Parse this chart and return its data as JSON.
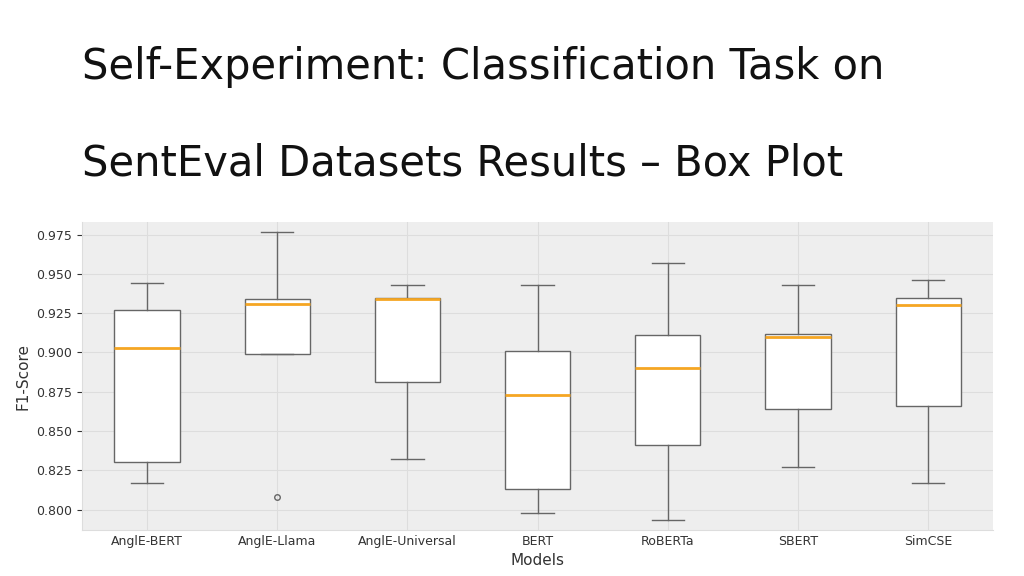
{
  "title_line1": "Self-Experiment: Classification Task on",
  "title_line2": "SentEval Datasets Results – Box Plot",
  "xlabel": "Models",
  "ylabel": "F1-Score",
  "models": [
    "AnglE-BERT",
    "AnglE-Llama",
    "AnglE-Universal",
    "BERT",
    "RoBERTa",
    "SBERT",
    "SimCSE"
  ],
  "box_stats": {
    "AnglE-BERT": {
      "whislo": 0.817,
      "q1": 0.83,
      "med": 0.903,
      "q3": 0.927,
      "whishi": 0.944,
      "fliers": []
    },
    "AnglE-Llama": {
      "whislo": 0.899,
      "q1": 0.899,
      "med": 0.931,
      "q3": 0.934,
      "whishi": 0.977,
      "fliers": [
        0.808
      ]
    },
    "AnglE-Universal": {
      "whislo": 0.832,
      "q1": 0.881,
      "med": 0.934,
      "q3": 0.935,
      "whishi": 0.943,
      "fliers": []
    },
    "BERT": {
      "whislo": 0.798,
      "q1": 0.813,
      "med": 0.873,
      "q3": 0.901,
      "whishi": 0.943,
      "fliers": []
    },
    "RoBERTa": {
      "whislo": 0.793,
      "q1": 0.841,
      "med": 0.89,
      "q3": 0.911,
      "whishi": 0.957,
      "fliers": []
    },
    "SBERT": {
      "whislo": 0.827,
      "q1": 0.864,
      "med": 0.91,
      "q3": 0.912,
      "whishi": 0.943,
      "fliers": []
    },
    "SimCSE": {
      "whislo": 0.817,
      "q1": 0.866,
      "med": 0.93,
      "q3": 0.935,
      "whishi": 0.946,
      "fliers": []
    }
  },
  "median_color": "#f5a623",
  "box_facecolor": "#ffffff",
  "box_edge_color": "#666666",
  "whisker_color": "#666666",
  "cap_color": "#666666",
  "flier_color": "#666666",
  "grid_color": "#dddddd",
  "plot_bg_color": "#eeeeee",
  "fig_bg_color": "#ffffff",
  "ylim": [
    0.787,
    0.983
  ],
  "yticks": [
    0.8,
    0.825,
    0.85,
    0.875,
    0.9,
    0.925,
    0.95,
    0.975
  ],
  "title_fontsize": 30,
  "label_fontsize": 11,
  "tick_fontsize": 9,
  "box_width": 0.5
}
